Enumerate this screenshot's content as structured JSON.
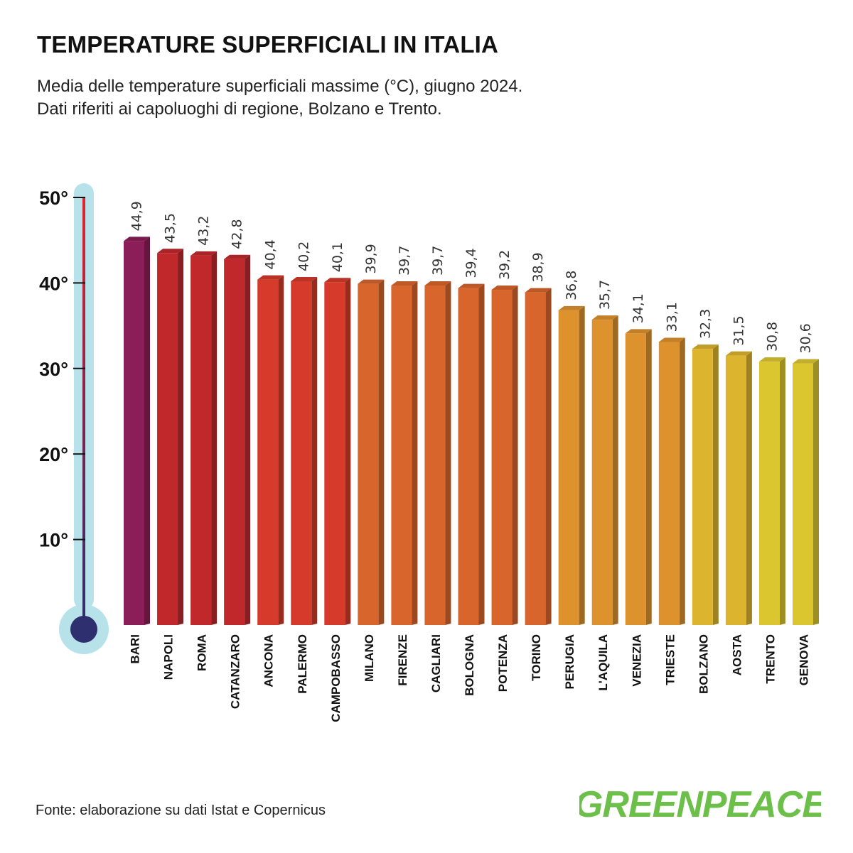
{
  "title": "TEMPERATURE SUPERFICIALI IN ITALIA",
  "subtitle_lines": [
    "Media delle temperature superficiali massime (°C), giugno 2024.",
    "Dati riferiti ai capoluoghi di regione, Bolzano e Trento."
  ],
  "source": "Fonte: elaborazione su dati Istat e Copernicus",
  "logo_text": "GREENPEACE",
  "colors": {
    "thermometer_outline": "#b7e2ea",
    "thermometer_bulb": "#2d2f6e",
    "logo_green": "#6cc04a"
  },
  "chart_data": {
    "type": "bar",
    "title": "TEMPERATURE SUPERFICIALI IN ITALIA",
    "ylim": [
      0,
      50
    ],
    "yticks": [
      {
        "value": 10,
        "label": "10°"
      },
      {
        "value": 20,
        "label": "20°"
      },
      {
        "value": 30,
        "label": "30°"
      },
      {
        "value": 40,
        "label": "40°"
      },
      {
        "value": 50,
        "label": "50°"
      }
    ],
    "categories": [
      "BARI",
      "NAPOLI",
      "ROMA",
      "CATANZARO",
      "ANCONA",
      "PALERMO",
      "CAMPOBASSO",
      "MILANO",
      "FIRENZE",
      "CAGLIARI",
      "BOLOGNA",
      "POTENZA",
      "TORINO",
      "PERUGIA",
      "L'AQUILA",
      "VENEZIA",
      "TRIESTE",
      "BOLZANO",
      "AOSTA",
      "TRENTO",
      "GENOVA"
    ],
    "values": [
      44.9,
      43.5,
      43.2,
      42.8,
      40.4,
      40.2,
      40.1,
      39.9,
      39.7,
      39.7,
      39.4,
      39.2,
      38.9,
      36.8,
      35.7,
      34.1,
      33.1,
      32.3,
      31.5,
      30.8,
      30.6
    ],
    "value_labels": [
      "44,9",
      "43,5",
      "43,2",
      "42,8",
      "40,4",
      "40,2",
      "40,1",
      "39,9",
      "39,7",
      "39,7",
      "39,4",
      "39,2",
      "38,9",
      "36,8",
      "35,7",
      "34,1",
      "33,1",
      "32,3",
      "31,5",
      "30,8",
      "30,6"
    ],
    "bar_colors": [
      "#8b1e58",
      "#c0282c",
      "#c0282c",
      "#c0282c",
      "#d53a2a",
      "#d53a2a",
      "#d53a2a",
      "#d8652c",
      "#d8652c",
      "#d8652c",
      "#d8652c",
      "#d8652c",
      "#d8652c",
      "#de922e",
      "#de922e",
      "#de922e",
      "#de922e",
      "#dcb42e",
      "#dcb42e",
      "#dcc630",
      "#dcc630"
    ],
    "grid": false,
    "legend": "none"
  }
}
